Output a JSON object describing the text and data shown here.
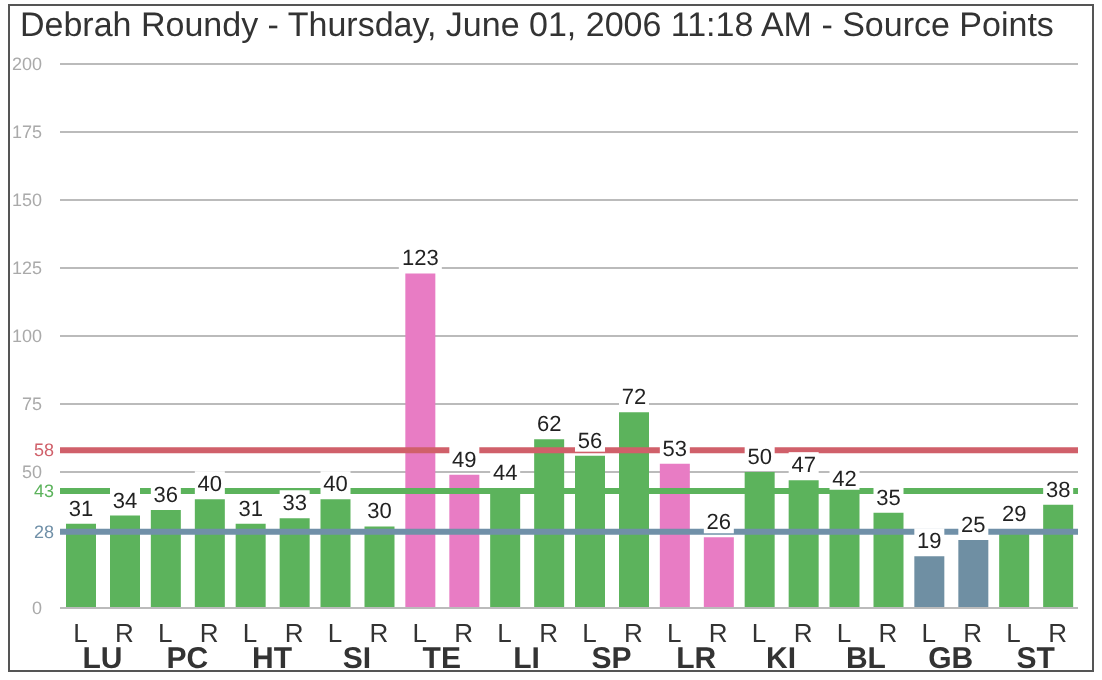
{
  "chart_data": {
    "type": "bar",
    "title": "Debrah Roundy - Thursday, June 01, 2006 11:18 AM - Source Points",
    "categories": [
      "LU",
      "PC",
      "HT",
      "SI",
      "TE",
      "LI",
      "SP",
      "LR",
      "KI",
      "BL",
      "GB",
      "ST"
    ],
    "series": [
      {
        "name": "L",
        "values": [
          31,
          36,
          31,
          40,
          123,
          44,
          56,
          53,
          50,
          42,
          19,
          29
        ],
        "colors": [
          "#5cb35c",
          "#5cb35c",
          "#5cb35c",
          "#5cb35c",
          "#e87cc4",
          "#5cb35c",
          "#5cb35c",
          "#e87cc4",
          "#5cb35c",
          "#5cb35c",
          "#6f8fa3",
          "#5cb35c"
        ]
      },
      {
        "name": "R",
        "values": [
          34,
          40,
          33,
          30,
          49,
          62,
          72,
          26,
          47,
          35,
          25,
          38
        ],
        "colors": [
          "#5cb35c",
          "#5cb35c",
          "#5cb35c",
          "#5cb35c",
          "#e87cc4",
          "#5cb35c",
          "#5cb35c",
          "#e87cc4",
          "#5cb35c",
          "#5cb35c",
          "#6f8fa3",
          "#5cb35c"
        ]
      }
    ],
    "ylim": [
      0,
      200
    ],
    "yticks": [
      0,
      50,
      75,
      100,
      125,
      150,
      175,
      200
    ],
    "grid": "y",
    "data_labels": true,
    "ref_lines": [
      {
        "axis": "y",
        "value": 58,
        "label": "58",
        "color": "#d0606a"
      },
      {
        "axis": "y",
        "value": 43,
        "label": "43",
        "color": "#5cb35c"
      },
      {
        "axis": "y",
        "value": 28,
        "label": "28",
        "color": "#7090a8"
      }
    ]
  }
}
